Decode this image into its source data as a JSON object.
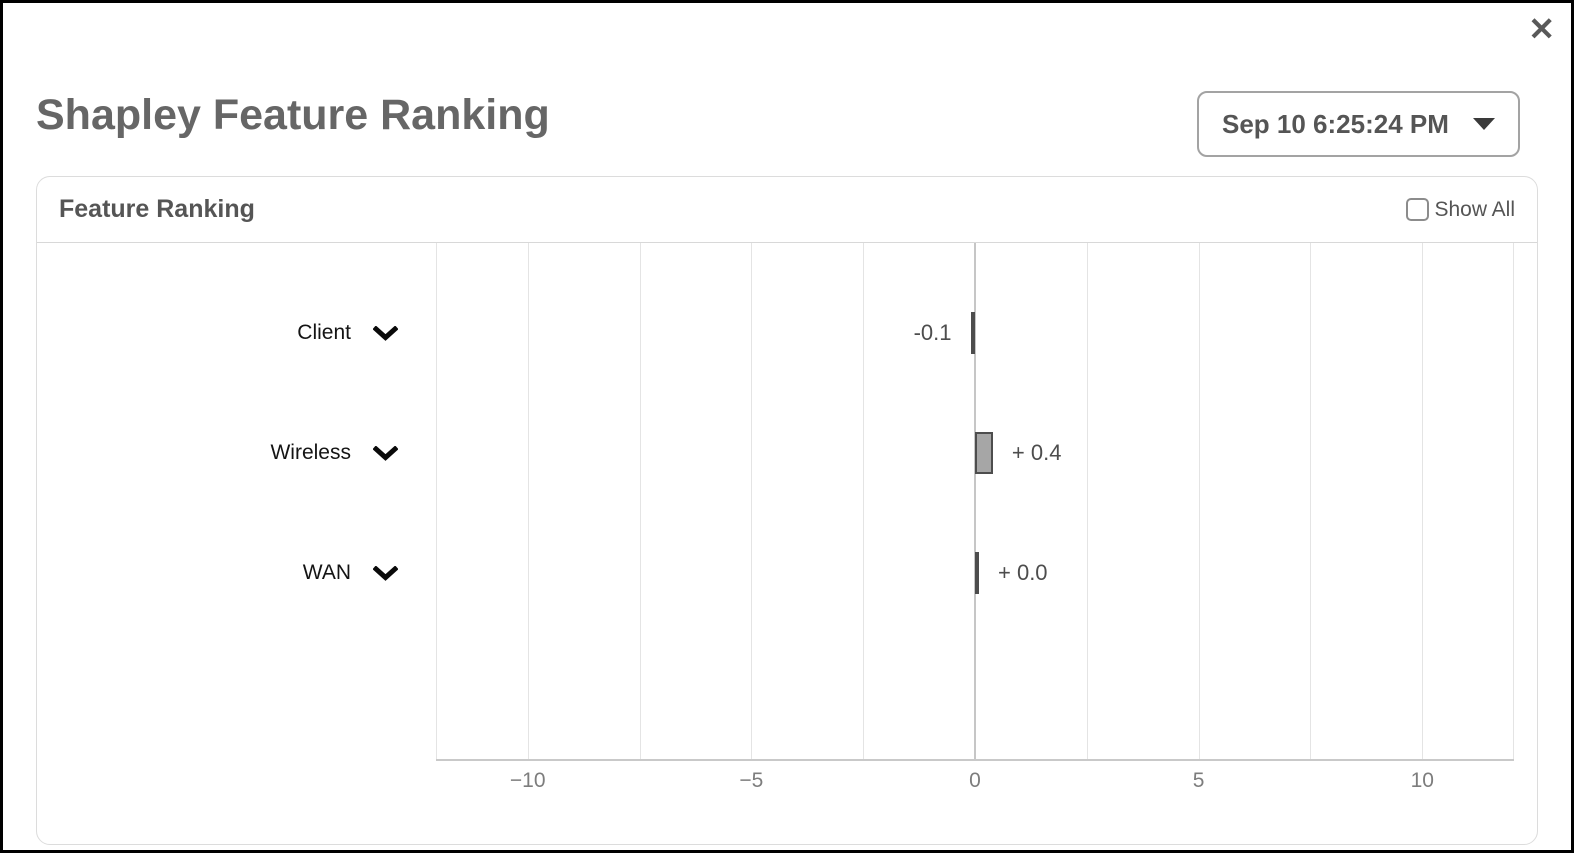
{
  "modal": {
    "title": "Shapley Feature Ranking",
    "close_label": "✕",
    "timestamp_selector": {
      "value": "Sep 10 6:25:24 PM",
      "caret_icon": "caret-down"
    }
  },
  "panel": {
    "title": "Feature Ranking",
    "show_all": {
      "label": "Show All",
      "checked": false
    }
  },
  "chart_data": {
    "type": "bar",
    "orientation": "horizontal",
    "title": "Feature Ranking",
    "categories": [
      "Client",
      "Wireless",
      "WAN"
    ],
    "values": [
      -0.1,
      0.4,
      0.0
    ],
    "value_labels": [
      "-0.1",
      "+ 0.4",
      "+ 0.0"
    ],
    "category_icon": "chevron-down-icon",
    "xlabel": "",
    "ylabel": "",
    "xlim": [
      -12.05,
      12.05
    ],
    "x_ticks": [
      -10,
      -5,
      0,
      5,
      10
    ],
    "x_tick_labels": [
      "−10",
      "−5",
      "0",
      "5",
      "10"
    ],
    "gridlines": [
      -10,
      -7.5,
      -5,
      -2.5,
      0,
      2.5,
      5,
      7.5,
      10
    ],
    "grid_on": true,
    "legend": "none",
    "bar_fill_color": "#a6a6a6",
    "bar_border_color": "#4d4d4d",
    "zero_line_color": "#c6c6c6",
    "gridline_color": "#e4e4e4"
  }
}
